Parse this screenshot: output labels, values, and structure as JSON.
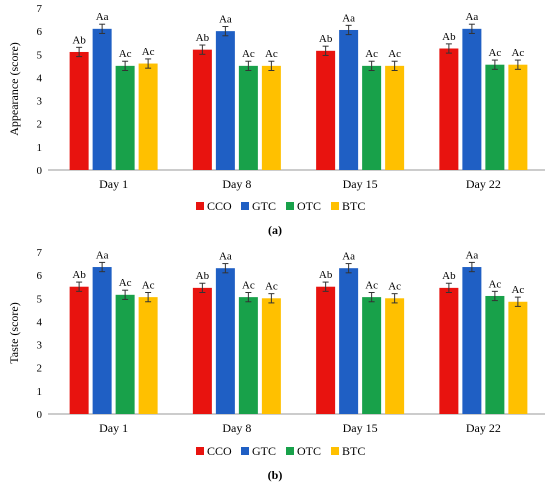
{
  "chart_data": [
    {
      "type": "bar",
      "panel_label": "(a)",
      "ylabel": "Appearance (score)",
      "ylim": [
        0,
        7
      ],
      "yticks": [
        0,
        1,
        2,
        3,
        4,
        5,
        6,
        7
      ],
      "categories": [
        "Day 1",
        "Day 8",
        "Day 15",
        "Day 22"
      ],
      "legend_position": "bottom-center",
      "series": [
        {
          "name": "CCO",
          "color": "#e8130f",
          "values": [
            5.1,
            5.2,
            5.15,
            5.25
          ],
          "errors": [
            0.2,
            0.2,
            0.2,
            0.2
          ],
          "labels": [
            "Ab",
            "Ab",
            "Ab",
            "Ab"
          ]
        },
        {
          "name": "GTC",
          "color": "#1f5fc4",
          "values": [
            6.1,
            6.0,
            6.05,
            6.1
          ],
          "errors": [
            0.2,
            0.2,
            0.2,
            0.2
          ],
          "labels": [
            "Aa",
            "Aa",
            "Aa",
            "Aa"
          ]
        },
        {
          "name": "OTC",
          "color": "#18a14a",
          "values": [
            4.5,
            4.5,
            4.5,
            4.55
          ],
          "errors": [
            0.2,
            0.2,
            0.2,
            0.2
          ],
          "labels": [
            "Ac",
            "Ac",
            "Ac",
            "Ac"
          ]
        },
        {
          "name": "BTC",
          "color": "#ffc000",
          "values": [
            4.6,
            4.5,
            4.5,
            4.55
          ],
          "errors": [
            0.2,
            0.2,
            0.2,
            0.2
          ],
          "labels": [
            "Ac",
            "Ac",
            "Ac",
            "Ac"
          ]
        }
      ]
    },
    {
      "type": "bar",
      "panel_label": "(b)",
      "ylabel": "Taste (score)",
      "ylim": [
        0,
        7
      ],
      "yticks": [
        0,
        1,
        2,
        3,
        4,
        5,
        6,
        7
      ],
      "categories": [
        "Day 1",
        "Day 8",
        "Day 15",
        "Day 22"
      ],
      "legend_position": "bottom-center",
      "series": [
        {
          "name": "CCO",
          "color": "#e8130f",
          "values": [
            5.5,
            5.45,
            5.5,
            5.45
          ],
          "errors": [
            0.2,
            0.2,
            0.2,
            0.2
          ],
          "labels": [
            "Ab",
            "Ab",
            "Ab",
            "Ab"
          ]
        },
        {
          "name": "GTC",
          "color": "#1f5fc4",
          "values": [
            6.35,
            6.3,
            6.3,
            6.35
          ],
          "errors": [
            0.2,
            0.2,
            0.2,
            0.2
          ],
          "labels": [
            "Aa",
            "Aa",
            "Aa",
            "Aa"
          ]
        },
        {
          "name": "OTC",
          "color": "#18a14a",
          "values": [
            5.15,
            5.05,
            5.05,
            5.1
          ],
          "errors": [
            0.2,
            0.2,
            0.2,
            0.2
          ],
          "labels": [
            "Ac",
            "Ac",
            "Ac",
            "Ac"
          ]
        },
        {
          "name": "BTC",
          "color": "#ffc000",
          "values": [
            5.05,
            5.0,
            5.0,
            4.85
          ],
          "errors": [
            0.2,
            0.2,
            0.2,
            0.2
          ],
          "labels": [
            "Ac",
            "Ac",
            "Ac",
            "Ac"
          ]
        }
      ]
    }
  ]
}
